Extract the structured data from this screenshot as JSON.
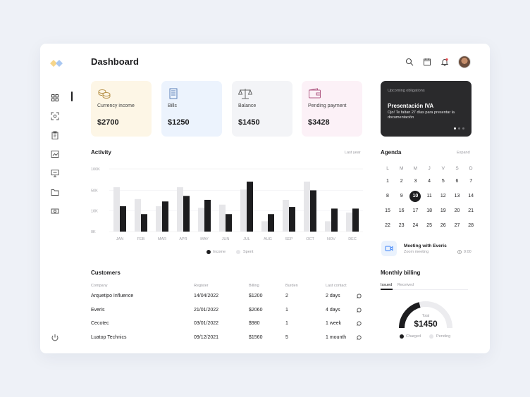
{
  "header": {
    "title": "Dashboard"
  },
  "stats": [
    {
      "label": "Currency income",
      "value": "$2700",
      "bg": "#fdf6e6",
      "icon": "coins-icon"
    },
    {
      "label": "Bills",
      "value": "$1250",
      "bg": "#ecf3fd",
      "icon": "receipt-icon"
    },
    {
      "label": "Balance",
      "value": "$1450",
      "bg": "#f3f4f7",
      "icon": "scale-icon"
    },
    {
      "label": "Pending payment",
      "value": "$3428",
      "bg": "#fcf1f7",
      "icon": "wallet-icon"
    }
  ],
  "obligations": {
    "label": "Upcoming obligations",
    "title": "Presentación IVA",
    "text": "Ojo! Te faltan 27 días para presentar la documentación"
  },
  "activity": {
    "title": "Activity",
    "period": "Last year"
  },
  "chart_data": {
    "type": "bar",
    "categories": [
      "JAN",
      "FEB",
      "MAR",
      "APR",
      "MAY",
      "JUN",
      "JUL",
      "AUG",
      "SEP",
      "OCT",
      "NOV",
      "DEC"
    ],
    "series": [
      {
        "name": "Income",
        "color": "#1d1d1f",
        "values": [
          32,
          22,
          38,
          45,
          40,
          22,
          63,
          22,
          31,
          52,
          29,
          29
        ]
      },
      {
        "name": "Spent",
        "color": "#e6e6e9",
        "values": [
          56,
          41,
          32,
          56,
          30,
          34,
          53,
          13,
          40,
          63,
          13,
          24
        ]
      }
    ],
    "yticks": [
      "0K",
      "10K",
      "50K",
      "100K"
    ],
    "ylim": [
      0,
      79
    ],
    "grid": true,
    "legend": "bottom-center"
  },
  "agenda": {
    "title": "Agenda",
    "expand": "Expand",
    "weekdays": [
      "L",
      "M",
      "M",
      "J",
      "V",
      "S",
      "D"
    ],
    "weeks": [
      [
        "1",
        "2",
        "3",
        "4",
        "5",
        "6",
        "7"
      ],
      [
        "8",
        "9",
        "10",
        "11",
        "12",
        "13",
        "14"
      ],
      [
        "15",
        "16",
        "17",
        "18",
        "19",
        "20",
        "21"
      ],
      [
        "22",
        "23",
        "24",
        "25",
        "26",
        "27",
        "28"
      ]
    ],
    "selected": "10",
    "meeting": {
      "title": "Meeting with Everis",
      "subtitle": "Zoom meeting",
      "time": "9:00"
    }
  },
  "customers": {
    "title": "Customers",
    "columns": [
      "Company",
      "Register",
      "Billing",
      "Burden",
      "Last contact"
    ],
    "rows": [
      [
        "Arquetipo Influence",
        "14/04/2022",
        "$1200",
        "2",
        "2 days"
      ],
      [
        "Everis",
        "21/01/2022",
        "$2060",
        "1",
        "4 days"
      ],
      [
        "Cecotec",
        "03/01/2022",
        "$980",
        "1",
        "1 week"
      ],
      [
        "Luatop Technics",
        "09/12/2021",
        "$1560",
        "5",
        "1 mounth"
      ]
    ]
  },
  "billing": {
    "title": "Monthly billing",
    "tabs": [
      "Issued",
      "Received"
    ],
    "total_label": "Total",
    "total": "$1450",
    "legend": [
      "Charged",
      "Pending"
    ],
    "charged_fraction": 0.42
  }
}
